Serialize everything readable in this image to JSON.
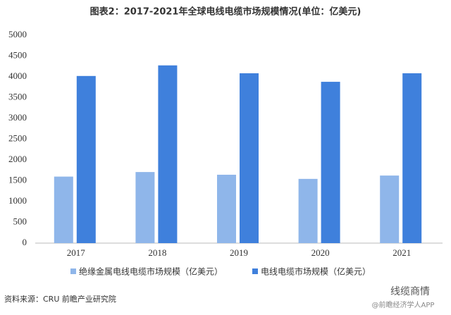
{
  "chart_data": {
    "type": "bar",
    "title": "图表2：2017-2021年全球电线电缆市场规模情况(单位：亿美元)",
    "categories": [
      "2017",
      "2018",
      "2019",
      "2020",
      "2021"
    ],
    "series": [
      {
        "name": "绝缘金属电线电缆市场规模（亿美元）",
        "color": "#8fb6ea",
        "values": [
          1600,
          1710,
          1645,
          1545,
          1625
        ]
      },
      {
        "name": "电线电缆市场规模（亿美元）",
        "color": "#3f80dc",
        "values": [
          4020,
          4275,
          4085,
          3880,
          4085
        ]
      }
    ],
    "ylim": [
      0,
      5000
    ],
    "yticks": [
      0,
      500,
      1000,
      1500,
      2000,
      2500,
      3000,
      3500,
      4000,
      4500,
      5000
    ],
    "grid": false,
    "legend": "bottom",
    "source": "资料来源：CRU 前瞻产业研究院",
    "credit": "线缆商情",
    "watermark": "@前瞻经济学人APP"
  }
}
